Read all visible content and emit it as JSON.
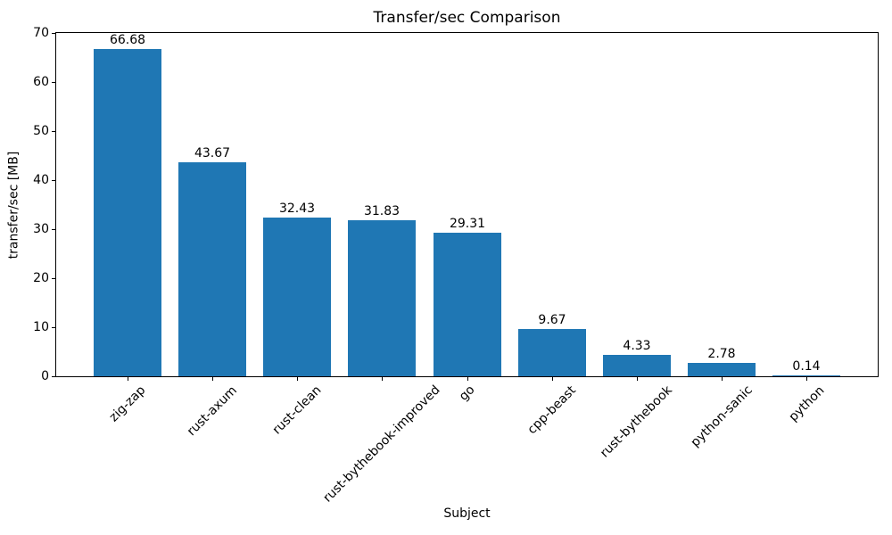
{
  "chart_data": {
    "type": "bar",
    "title": "Transfer/sec Comparison",
    "xlabel": "Subject",
    "ylabel": "transfer/sec [MB]",
    "categories": [
      "zig-zap",
      "rust-axum",
      "rust-clean",
      "rust-bythebook-improved",
      "go",
      "cpp-beast",
      "rust-bythebook",
      "python-sanic",
      "python"
    ],
    "values": [
      66.68,
      43.67,
      32.43,
      31.83,
      29.31,
      9.67,
      4.33,
      2.78,
      0.14
    ],
    "value_labels": [
      "66.68",
      "43.67",
      "32.43",
      "31.83",
      "29.31",
      "9.67",
      "4.33",
      "2.78",
      "0.14"
    ],
    "ylim": [
      0,
      70
    ],
    "yticks": [
      0,
      10,
      20,
      30,
      40,
      50,
      60,
      70
    ],
    "bar_color": "#1f77b4",
    "grid": false,
    "legend_position": "none",
    "xtick_rotation_deg": 45
  }
}
